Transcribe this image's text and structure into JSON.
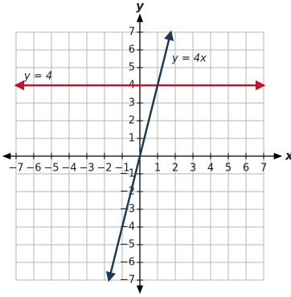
{
  "chart_data": {
    "type": "line",
    "x_label": "x",
    "y_label": "y",
    "xlim": [
      -7,
      7
    ],
    "ylim": [
      -7,
      7
    ],
    "grid": true,
    "xticks": [
      {
        "value": -7,
        "label": "−7"
      },
      {
        "value": -6,
        "label": "−6"
      },
      {
        "value": -5,
        "label": "−5"
      },
      {
        "value": -4,
        "label": "−4"
      },
      {
        "value": -3,
        "label": "−3"
      },
      {
        "value": -2,
        "label": "−2"
      },
      {
        "value": -1,
        "label": "−1"
      },
      1,
      2,
      3,
      4,
      5,
      6,
      7
    ],
    "yticks": [
      {
        "value": -7,
        "label": "−7"
      },
      {
        "value": -6,
        "label": "−6"
      },
      {
        "value": -5,
        "label": "−5"
      },
      {
        "value": -4,
        "label": "−4"
      },
      {
        "value": -3,
        "label": "−3"
      },
      {
        "value": -2,
        "label": "−2"
      },
      {
        "value": -1,
        "label": "−1"
      },
      1,
      2,
      3,
      4,
      5,
      6,
      7
    ],
    "series": [
      {
        "name": "y = 4",
        "color": "#c8102e",
        "x": [
          -7,
          7
        ],
        "values": [
          4,
          4
        ]
      },
      {
        "name": "y = 4x",
        "color": "#1b3a57",
        "x": [
          -1.75,
          1.75
        ],
        "values": [
          -7,
          7
        ]
      }
    ]
  }
}
